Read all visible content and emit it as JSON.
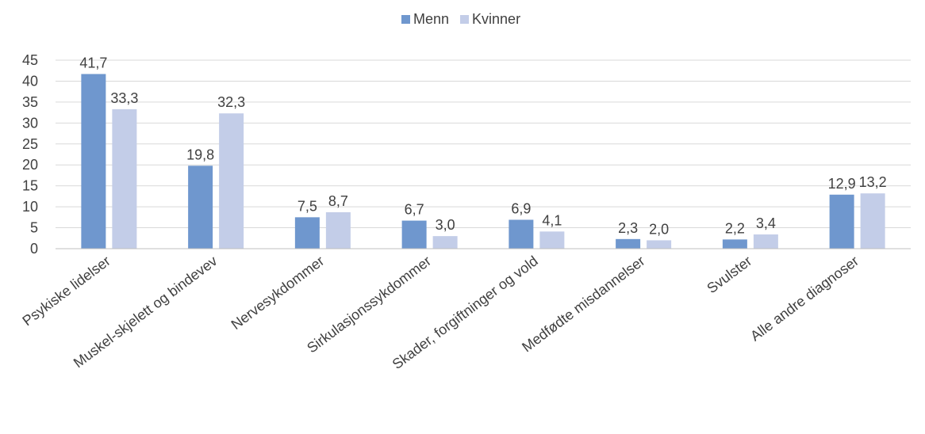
{
  "chart_data": {
    "type": "bar",
    "categories": [
      "Psykiske lidelser",
      "Muskel-skjelett og bindevev",
      "Nervesykdommer",
      "Sirkulasjonssykdommer",
      "Skader, forgiftninger og vold",
      "Medfødte misdannelser",
      "Svulster",
      "Alle andre diagnoser"
    ],
    "series": [
      {
        "name": "Menn",
        "color": "#6F97CE",
        "values": [
          41.7,
          19.8,
          7.5,
          6.7,
          6.9,
          2.3,
          2.2,
          12.9
        ],
        "labels": [
          "41,7",
          "19,8",
          "7,5",
          "6,7",
          "6,9",
          "2,3",
          "2,2",
          "12,9"
        ]
      },
      {
        "name": "Kvinner",
        "color": "#C3CDE8",
        "values": [
          33.3,
          32.3,
          8.7,
          3.0,
          4.1,
          2.0,
          3.4,
          13.2
        ],
        "labels": [
          "33,3",
          "32,3",
          "8,7",
          "3,0",
          "4,1",
          "2,0",
          "3,4",
          "13,2"
        ]
      }
    ],
    "yticks": [
      0,
      5,
      10,
      15,
      20,
      25,
      30,
      35,
      40,
      45
    ],
    "ylim": [
      0,
      45
    ],
    "grid": true,
    "legend": "top-center",
    "gridColor": "#D9D9D9",
    "axisColor": "#BFBFBF",
    "textColor": "#404040"
  }
}
